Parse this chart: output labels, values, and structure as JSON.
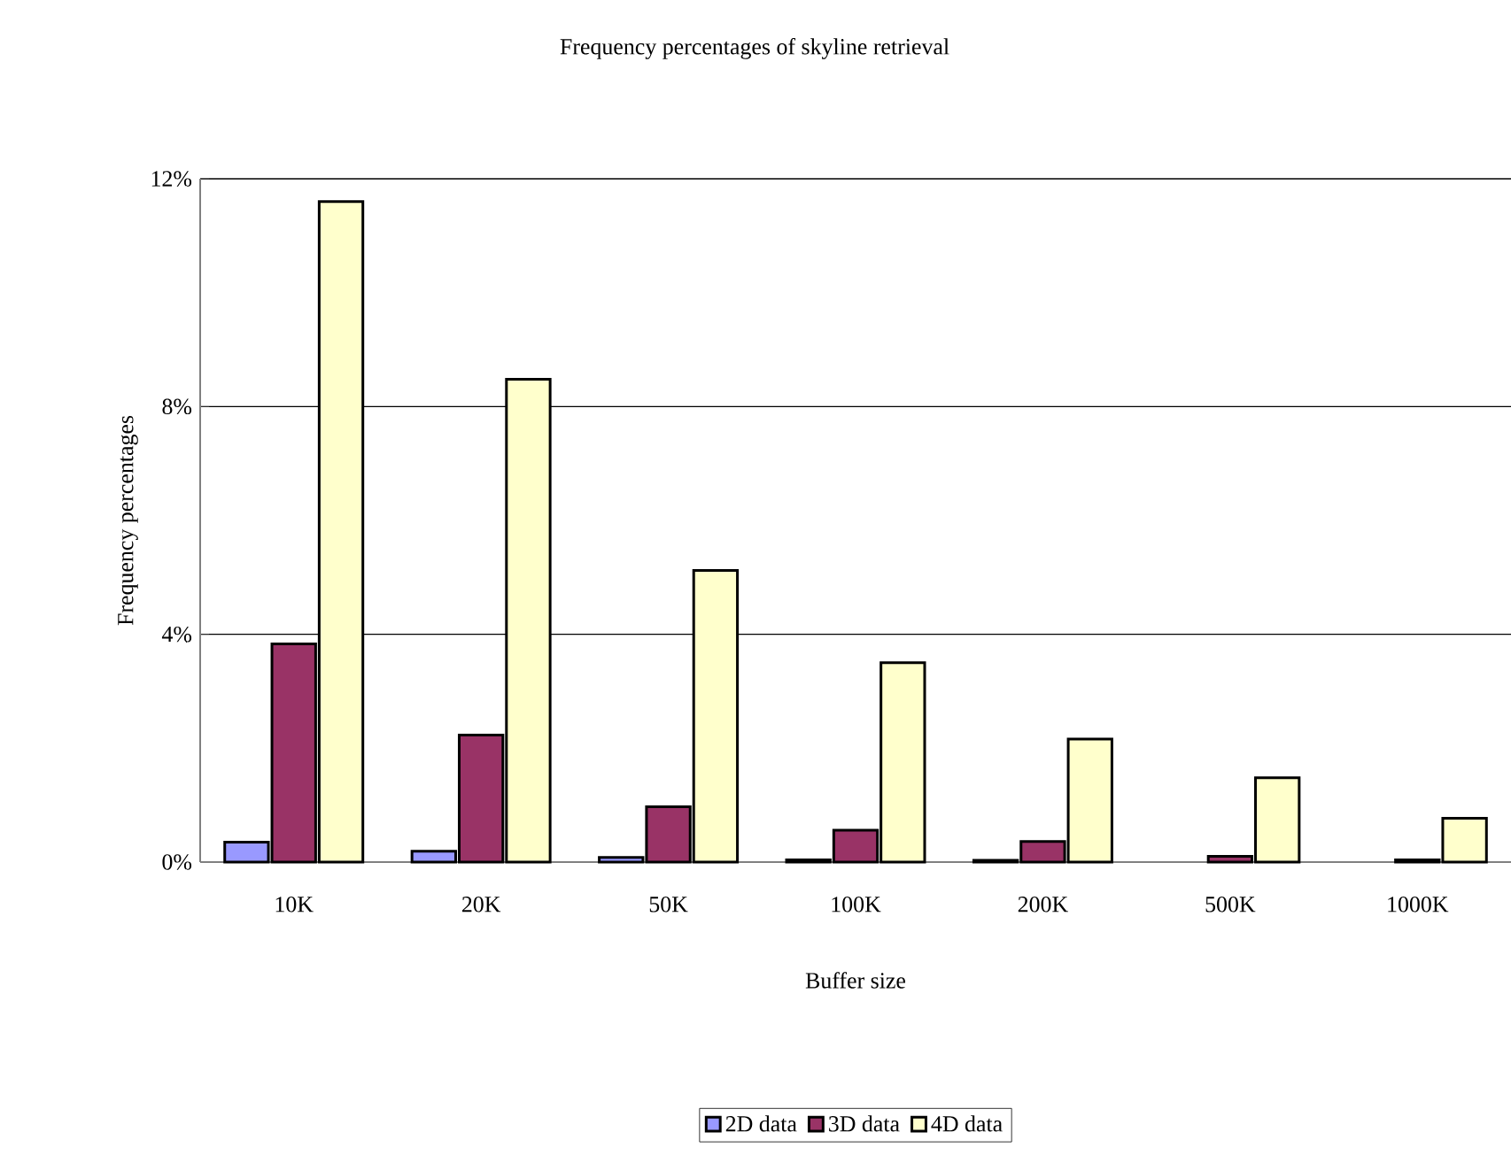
{
  "chart_data": {
    "type": "bar",
    "title": "Frequency percentages of skyline retrieval",
    "xlabel": "Buffer size",
    "ylabel": "Frequency percentages",
    "categories": [
      "10K",
      "20K",
      "50K",
      "100K",
      "200K",
      "500K",
      "1000K"
    ],
    "series": [
      {
        "name": "2D data",
        "color": "#9999ff",
        "values": [
          0.35,
          0.19,
          0.08,
          0.04,
          0.03,
          null,
          null
        ]
      },
      {
        "name": "3D data",
        "color": "#993366",
        "values": [
          3.83,
          2.23,
          0.97,
          0.56,
          0.36,
          0.1,
          0.04
        ]
      },
      {
        "name": "4D data",
        "color": "#ffffcc",
        "values": [
          11.6,
          8.48,
          5.12,
          3.5,
          2.16,
          1.48,
          0.77
        ]
      }
    ],
    "ylim": [
      0,
      12
    ],
    "yticks": [
      {
        "value": 0,
        "label": "0%"
      },
      {
        "value": 4,
        "label": "4%"
      },
      {
        "value": 8,
        "label": "8%"
      },
      {
        "value": 12,
        "label": "12%"
      }
    ],
    "grid": "y",
    "legend": "bottom"
  }
}
